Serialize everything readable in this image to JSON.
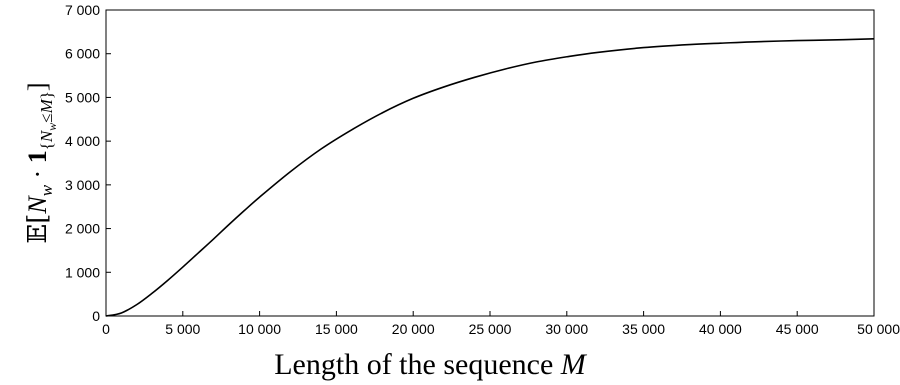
{
  "chart_data": {
    "type": "line",
    "title": "",
    "xlabel": "Length of the sequence M",
    "ylabel": "𝔼[N_w · 1_{N_w ≤ M}]",
    "xlim": [
      0,
      50000
    ],
    "ylim": [
      0,
      7000
    ],
    "grid": false,
    "legend": "none",
    "line_color": "#000000",
    "x_ticks": [
      0,
      5000,
      10000,
      15000,
      20000,
      25000,
      30000,
      35000,
      40000,
      45000,
      50000
    ],
    "x_tick_labels": [
      "0",
      "5 000",
      "10 000",
      "15 000",
      "20 000",
      "25 000",
      "30 000",
      "35 000",
      "40 000",
      "45 000",
      "50 000"
    ],
    "y_ticks": [
      0,
      1000,
      2000,
      3000,
      4000,
      5000,
      6000,
      7000
    ],
    "y_tick_labels": [
      "0",
      "1 000",
      "2 000",
      "3 000",
      "4 000",
      "5 000",
      "6 000",
      "7 000"
    ],
    "series": [
      {
        "x": [
          0,
          1000,
          2000,
          3000,
          4000,
          5000,
          6000,
          7000,
          8000,
          9000,
          10000,
          12000,
          14000,
          16000,
          18000,
          20000,
          22000,
          24000,
          26000,
          28000,
          30000,
          32000,
          35000,
          38000,
          40000,
          42000,
          45000,
          48000,
          50000
        ],
        "y": [
          0,
          70,
          260,
          520,
          810,
          1120,
          1440,
          1760,
          2090,
          2410,
          2720,
          3300,
          3820,
          4260,
          4650,
          4980,
          5240,
          5460,
          5650,
          5810,
          5930,
          6030,
          6140,
          6210,
          6240,
          6270,
          6300,
          6320,
          6340
        ]
      }
    ]
  }
}
